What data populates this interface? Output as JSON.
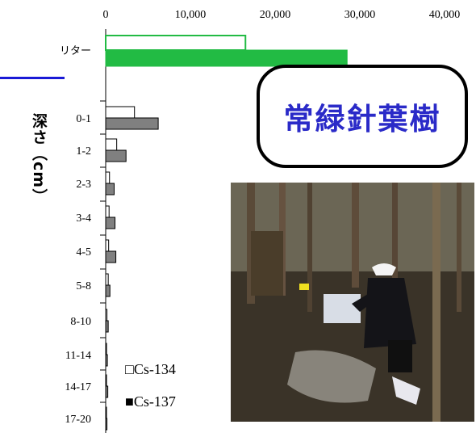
{
  "chart_data": {
    "type": "bar",
    "orientation": "horizontal",
    "ylabel": "深さ（cm）",
    "categories": [
      "リター",
      "0-1",
      "1-2",
      "2-3",
      "3-4",
      "4-5",
      "5-8",
      "8-10",
      "11-14",
      "14-17",
      "17-20"
    ],
    "xlim": [
      0,
      40000
    ],
    "xticks": [
      "0",
      "10,000",
      "20,000",
      "30,000",
      "40,000"
    ],
    "series": [
      {
        "name": "Cs-134",
        "color": "#ffffff",
        "values": [
          16500,
          3400,
          1300,
          450,
          400,
          350,
          300,
          150,
          100,
          80,
          50
        ]
      },
      {
        "name": "Cs-137",
        "color": "#808080",
        "values": [
          28500,
          6200,
          2400,
          1000,
          1100,
          1200,
          500,
          300,
          200,
          250,
          150
        ]
      }
    ],
    "litter_color": "#22bb44",
    "grid": false,
    "legend_position": "bottom-left"
  },
  "badge": {
    "text": "常緑針葉樹"
  },
  "legend": {
    "cs134": "□Cs-134",
    "cs137": "■Cs-137"
  },
  "photo": {
    "board_color": "#d8dde6",
    "helmet_color": "#f4f4f4"
  }
}
